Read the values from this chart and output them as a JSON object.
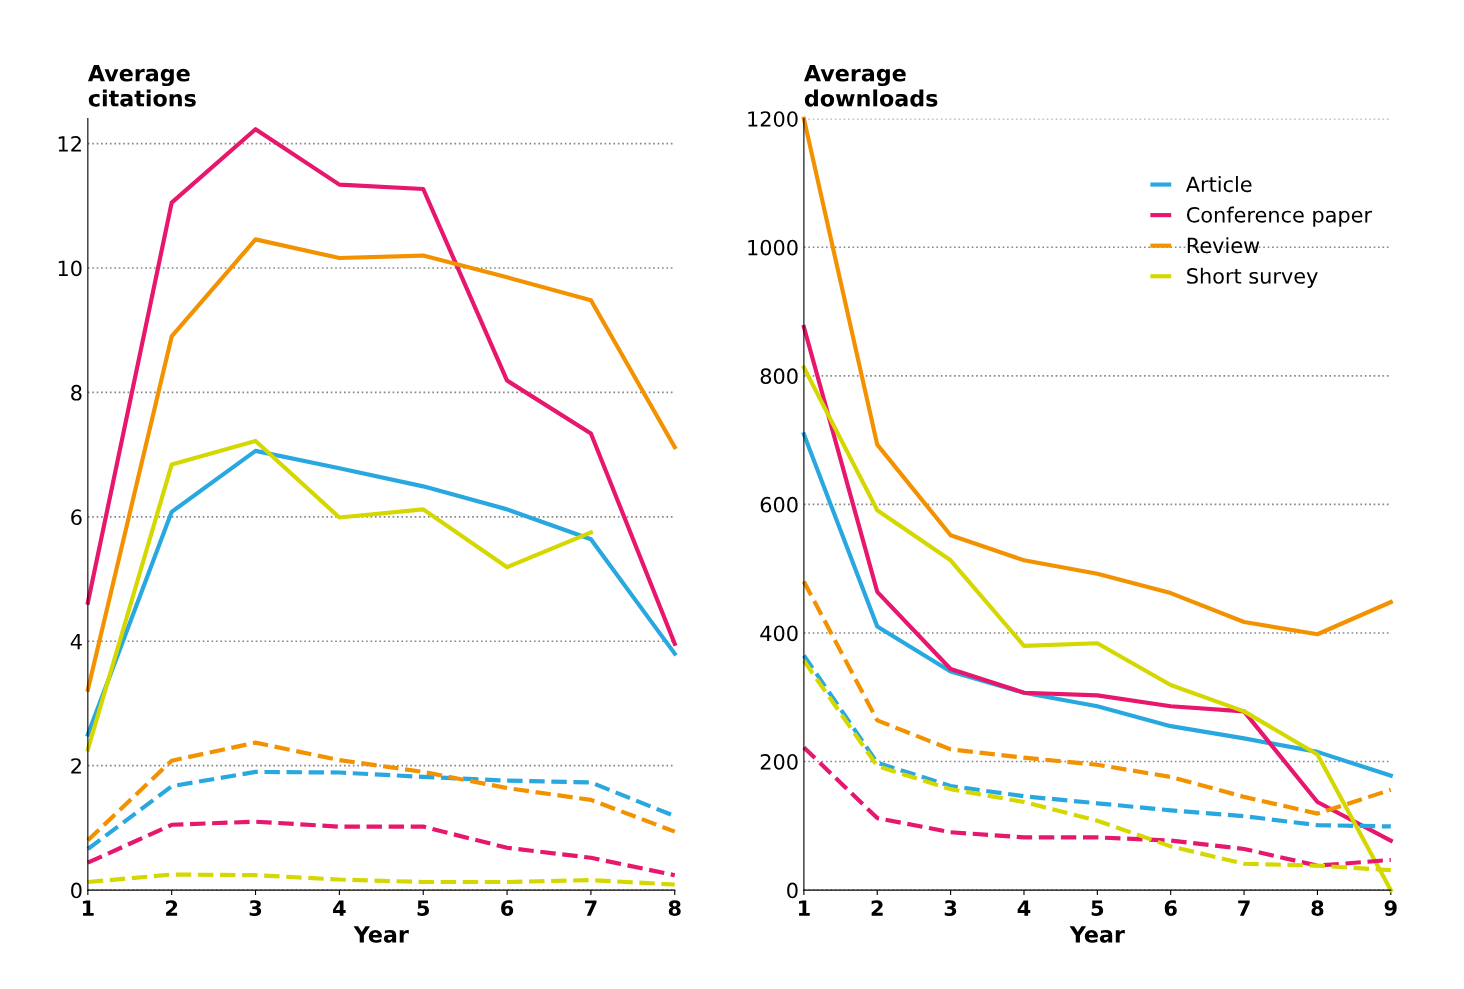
{
  "chart_data": [
    {
      "type": "line",
      "xlabel": "Year",
      "ylabel": "Average\ncitations",
      "x": [
        1,
        2,
        3,
        4,
        5,
        6,
        7,
        8
      ],
      "xlim": [
        1,
        8
      ],
      "xticks": [
        1,
        2,
        3,
        4,
        5,
        6,
        7,
        8
      ],
      "ylim": [
        0,
        12.4
      ],
      "yticks": [
        0,
        2,
        4,
        6,
        8,
        10,
        12
      ],
      "grid": "y",
      "legend": false,
      "marker": "none",
      "series": [
        {
          "color": "#29a8e0",
          "line_style": "solid",
          "values": [
            2.5,
            6.08,
            7.06,
            6.78,
            6.49,
            6.12,
            5.64,
            3.8
          ]
        },
        {
          "color": "#e6176d",
          "line_style": "solid",
          "values": [
            4.62,
            11.05,
            12.23,
            11.34,
            11.27,
            8.19,
            7.34,
            3.96
          ]
        },
        {
          "color": "#f39200",
          "line_style": "solid",
          "values": [
            3.22,
            8.9,
            10.46,
            10.16,
            10.2,
            9.85,
            9.48,
            7.12
          ]
        },
        {
          "color": "#d4d800",
          "line_style": "solid",
          "values": [
            2.26,
            6.84,
            7.22,
            5.99,
            6.12,
            5.19,
            5.75,
            null
          ]
        },
        {
          "color": "#29a8e0",
          "line_style": "dashed",
          "values": [
            0.66,
            1.67,
            1.9,
            1.89,
            1.82,
            1.76,
            1.73,
            1.19
          ]
        },
        {
          "color": "#e6176d",
          "line_style": "dashed",
          "values": [
            0.44,
            1.05,
            1.1,
            1.02,
            1.02,
            0.68,
            0.52,
            0.24
          ]
        },
        {
          "color": "#f39200",
          "line_style": "dashed",
          "values": [
            0.8,
            2.08,
            2.37,
            2.09,
            1.9,
            1.64,
            1.45,
            0.94
          ]
        },
        {
          "color": "#d4d800",
          "line_style": "dashed",
          "values": [
            0.13,
            0.25,
            0.24,
            0.17,
            0.13,
            0.13,
            0.16,
            0.09
          ]
        }
      ]
    },
    {
      "type": "line",
      "xlabel": "Year",
      "ylabel": "Average\ndownloads",
      "x": [
        1,
        2,
        3,
        4,
        5,
        6,
        7,
        8,
        9
      ],
      "xlim": [
        1,
        9
      ],
      "xticks": [
        1,
        2,
        3,
        4,
        5,
        6,
        7,
        8,
        9
      ],
      "ylim": [
        0,
        1200
      ],
      "yticks": [
        0,
        200,
        400,
        600,
        800,
        1000,
        1200
      ],
      "grid": "y",
      "legend": "top right",
      "marker": "none",
      "series": [
        {
          "name": "Article",
          "color": "#29a8e0",
          "line_style": "solid",
          "values": [
            709,
            410,
            340,
            307,
            286,
            255,
            236,
            215,
            178
          ]
        },
        {
          "name": "Conference paper",
          "color": "#e6176d",
          "line_style": "solid",
          "values": [
            876,
            464,
            344,
            307,
            303,
            286,
            278,
            137,
            77
          ]
        },
        {
          "name": "Review",
          "color": "#f39200",
          "line_style": "solid",
          "values": [
            1200,
            693,
            552,
            513,
            492,
            462,
            417,
            398,
            448
          ]
        },
        {
          "name": "Short survey",
          "color": "#d4d800",
          "line_style": "solid",
          "values": [
            813,
            591,
            513,
            380,
            384,
            319,
            278,
            211,
            0
          ]
        },
        {
          "color": "#29a8e0",
          "line_style": "dashed",
          "values": [
            365,
            198,
            162,
            146,
            135,
            124,
            115,
            101,
            99
          ]
        },
        {
          "color": "#e6176d",
          "line_style": "dashed",
          "values": [
            222,
            112,
            90,
            82,
            82,
            77,
            64,
            38,
            47
          ]
        },
        {
          "color": "#f39200",
          "line_style": "dashed",
          "values": [
            480,
            264,
            219,
            206,
            195,
            176,
            145,
            119,
            156
          ]
        },
        {
          "color": "#d4d800",
          "line_style": "dashed",
          "values": [
            357,
            193,
            157,
            137,
            108,
            68,
            41,
            38,
            31
          ]
        }
      ]
    }
  ]
}
